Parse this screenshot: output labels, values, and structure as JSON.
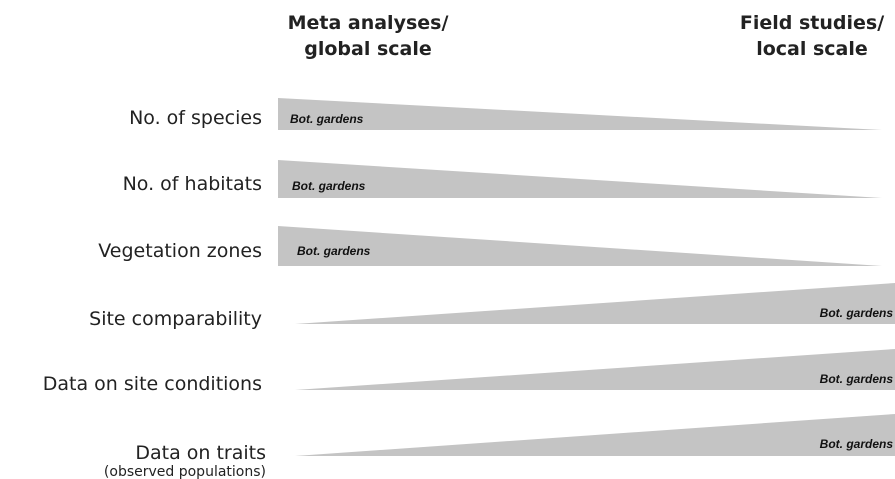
{
  "header": {
    "left": [
      "Meta analyses/",
      "global scale"
    ],
    "right": [
      "Field studies/",
      "local scale"
    ]
  },
  "rows": [
    {
      "label": "No. of species",
      "tag": "Bot. gardens"
    },
    {
      "label": "No. of habitats",
      "tag": "Bot. gardens"
    },
    {
      "label": "Vegetation zones",
      "tag": "Bot. gardens"
    },
    {
      "label": "Site comparability",
      "tag": "Bot. gardens"
    },
    {
      "label": "Data on site conditions",
      "tag": "Bot. gardens"
    },
    {
      "label": "Data on traits",
      "sublabel": "(observed populations)",
      "tag": "Bot. gardens"
    }
  ]
}
